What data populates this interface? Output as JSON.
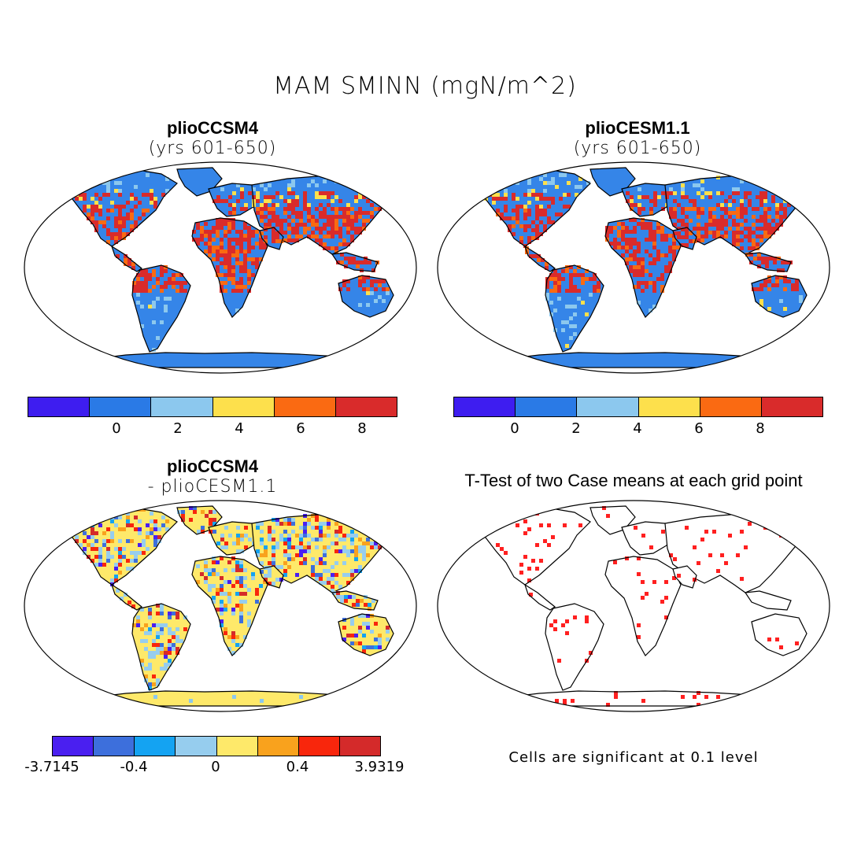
{
  "figure": {
    "title": "MAM SMINN (mgN/m^2)"
  },
  "panels": {
    "top_left": {
      "title": "plioCCSM4",
      "subtitle": "(yrs 601-650)"
    },
    "top_right": {
      "title": "plioCESM1.1",
      "subtitle": "(yrs 601-650)"
    },
    "bottom_left": {
      "title": "plioCCSM4",
      "subtitle": "- plioCESM1.1"
    },
    "bottom_right": {
      "title": "T-Test of two Case means at each grid point",
      "note": "Cells are significant at 0.1 level"
    }
  },
  "colorbar_fields": {
    "colors": [
      "#3e1df0",
      "#2a7ae6",
      "#8cc8ee",
      "#fde04c",
      "#fa6a12",
      "#d92b2b"
    ],
    "ticks": [
      "0",
      "2",
      "4",
      "6",
      "8"
    ]
  },
  "colorbar_diff": {
    "colors": [
      "#4a1ff0",
      "#3d6fdc",
      "#14a3f2",
      "#96cdee",
      "#fee96a",
      "#f9a21d",
      "#f8260c",
      "#d42a2a"
    ],
    "ticks": [
      "-3.7145",
      "-0.4",
      "0",
      "0.4",
      "3.9319"
    ]
  },
  "colors": {
    "land_base": "#3585e8",
    "land_mid": "#8cc8ee",
    "land_hot": "#d92b2b",
    "land_warm": "#fa6a12",
    "land_yellow": "#fde04c",
    "diff_base": "#fee96a",
    "signif": "#ff2020"
  }
}
